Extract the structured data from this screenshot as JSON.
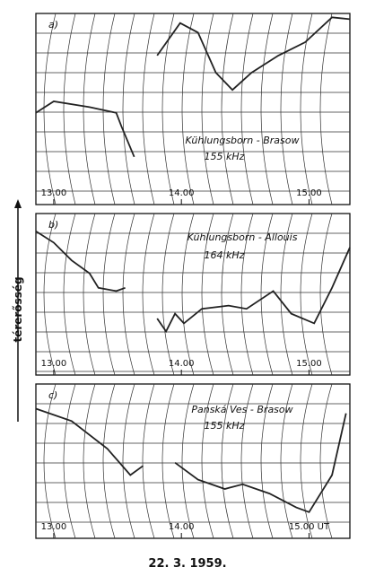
{
  "ylabel": "térerősség",
  "caption": "22. 3. 1959.",
  "chart_data": [
    {
      "type": "line",
      "panel": "a)",
      "title": "Kühlungsborn - Brasow",
      "subtitle": "155 kHz",
      "xlim": [
        12.86,
        15.32
      ],
      "ylim": [
        0,
        100
      ],
      "xticks": [
        {
          "value": 13,
          "label": "13.00"
        },
        {
          "value": 14,
          "label": "14.00"
        },
        {
          "value": 15,
          "label": "15.00"
        }
      ],
      "series": [
        {
          "color": "#222222",
          "x": [
            12.86,
            13.0,
            13.28,
            13.49,
            13.53,
            13.63,
            13.72,
            13.81,
            13.99,
            14.13,
            14.27,
            14.4,
            14.55,
            14.76,
            14.97,
            15.18,
            15.32
          ],
          "values": [
            48,
            54,
            51,
            48,
            41,
            25,
            null,
            78,
            95,
            90,
            69,
            60,
            69,
            78,
            85,
            98,
            97
          ]
        }
      ]
    },
    {
      "type": "line",
      "panel": "b)",
      "title": "Kühlungsborn - Allouis",
      "subtitle": "164 kHz",
      "xlim": [
        12.86,
        15.32
      ],
      "ylim": [
        0,
        100
      ],
      "xticks": [
        {
          "value": 13,
          "label": "13.00"
        },
        {
          "value": 14,
          "label": "14.00"
        },
        {
          "value": 15,
          "label": "15.00"
        }
      ],
      "series": [
        {
          "color": "#222222",
          "x": [
            12.86,
            13.0,
            13.14,
            13.28,
            13.35,
            13.49,
            13.56,
            13.65,
            13.81,
            13.88,
            13.95,
            14.02,
            14.16,
            14.37,
            14.51,
            14.72,
            14.86,
            15.04,
            15.18,
            15.32
          ],
          "values": [
            89,
            82,
            71,
            63,
            54,
            52,
            54,
            null,
            35,
            27,
            38,
            32,
            41,
            43,
            41,
            52,
            38,
            32,
            54,
            79
          ]
        }
      ]
    },
    {
      "type": "line",
      "panel": "c)",
      "title": "Panská Ves - Brasow",
      "subtitle": "155 kHz",
      "xlim": [
        12.86,
        15.32
      ],
      "ylim": [
        0,
        100
      ],
      "xticks": [
        {
          "value": 13,
          "label": "13.00"
        },
        {
          "value": 14,
          "label": "14.00"
        },
        {
          "value": 15,
          "label": "15.00 UT"
        }
      ],
      "series": [
        {
          "color": "#222222",
          "x": [
            12.86,
            13.14,
            13.42,
            13.6,
            13.7,
            13.78,
            13.95,
            14.13,
            14.34,
            14.48,
            14.69,
            14.9,
            15.0,
            15.18,
            15.29
          ],
          "values": [
            84,
            76,
            58,
            41,
            47,
            null,
            49,
            38,
            32,
            35,
            29,
            20,
            17,
            41,
            81
          ]
        }
      ]
    }
  ]
}
